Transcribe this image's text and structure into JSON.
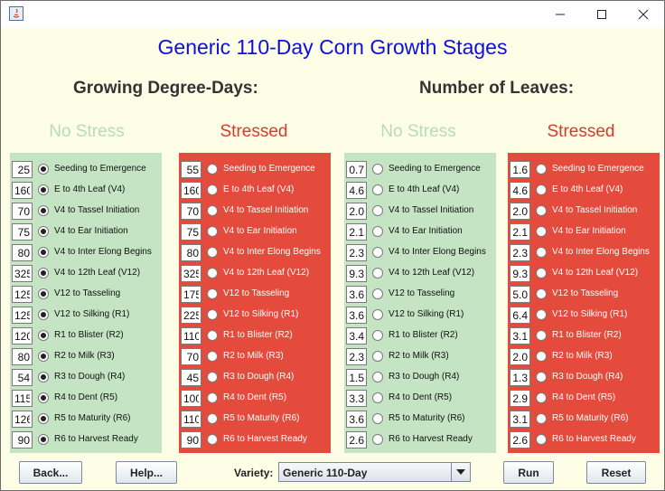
{
  "window": {
    "icon": "java-icon",
    "controls": [
      "minimize-icon",
      "maximize-icon",
      "close-icon"
    ]
  },
  "title": "Generic 110-Day Corn Growth Stages",
  "gdd_heading": "Growing Degree-Days:",
  "leaves_heading": "Number of Leaves:",
  "no_stress_label": "No Stress",
  "stressed_label": "Stressed",
  "colors": {
    "no_stress_panel": "#c4e4c4",
    "stressed_panel": "#e54b3c",
    "title": "#1010d8",
    "no_stress_text": "#b8dcb8",
    "stressed_text": "#d83a2e"
  },
  "stages": [
    "Seeding to Emergence",
    "E to 4th Leaf (V4)",
    "V4 to Tassel Initiation",
    "V4 to Ear Initiation",
    "V4 to Inter Elong Begins",
    "V4 to 12th Leaf (V12)",
    "V12 to Tasseling",
    "V12 to Silking (R1)",
    "R1 to Blister (R2)",
    "R2 to Milk (R3)",
    "R3 to Dough (R4)",
    "R4 to Dent (R5)",
    "R5 to Maturity (R6)",
    "R6 to Harvest Ready"
  ],
  "gdd_no_stress": [
    "25",
    "160",
    "70",
    "75",
    "80",
    "325",
    "125",
    "125",
    "120",
    "80",
    "54",
    "115",
    "126",
    "90"
  ],
  "gdd_stressed": [
    "55",
    "160",
    "70",
    "75",
    "80",
    "325",
    "175",
    "225",
    "110",
    "70",
    "45",
    "100",
    "110",
    "90"
  ],
  "leaves_no_stress": [
    "0.7",
    "4.6",
    "2.0",
    "2.1",
    "2.3",
    "9.3",
    "3.6",
    "3.6",
    "3.4",
    "2.3",
    "1.5",
    "3.3",
    "3.6",
    "2.6"
  ],
  "leaves_stressed": [
    "1.6",
    "4.6",
    "2.0",
    "2.1",
    "2.3",
    "9.3",
    "5.0",
    "6.4",
    "3.1",
    "2.0",
    "1.3",
    "2.9",
    "3.1",
    "2.6"
  ],
  "selected": {
    "gdd_no_stress": true,
    "gdd_stressed": false,
    "leaves_no_stress": false,
    "leaves_stressed": false
  },
  "buttons": {
    "back": "Back...",
    "help": "Help...",
    "run": "Run",
    "reset": "Reset"
  },
  "variety": {
    "label": "Variety:",
    "value": "Generic 110-Day"
  }
}
